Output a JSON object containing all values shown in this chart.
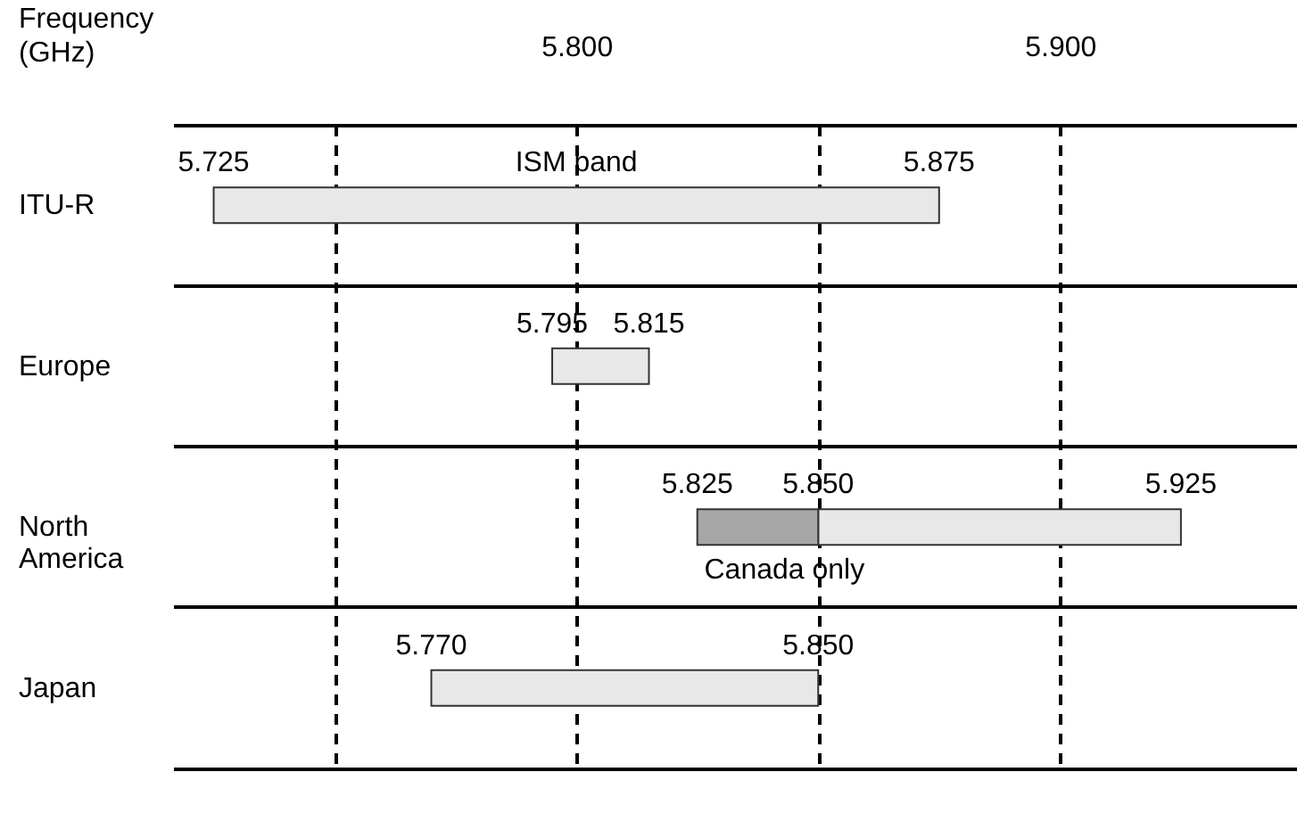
{
  "chart_data": {
    "type": "bar",
    "orientation": "horizontal",
    "xlabel": "Frequency (GHz)",
    "categories": [
      "ITU-R",
      "Europe",
      "North America",
      "Japan"
    ],
    "series": [
      {
        "color": "#e8e8e8",
        "base": [
          5.725,
          5.795,
          5.85,
          5.77
        ],
        "values": [
          0.15,
          0.02,
          0.075,
          0.08
        ]
      },
      {
        "name": "Canada only",
        "color": "#a6a6a6",
        "base": [
          null,
          null,
          5.825,
          null
        ],
        "values": [
          null,
          null,
          0.025,
          null
        ]
      }
    ],
    "xlim": [
      5.7166,
      5.949
    ],
    "xticks": [
      {
        "value": 5.75,
        "label": null
      },
      {
        "value": 5.8,
        "label": "5.800"
      },
      {
        "value": 5.85,
        "label": null
      },
      {
        "value": 5.9,
        "label": "5.900"
      }
    ],
    "grid": true,
    "annotations": [
      "ISM band",
      {
        "text": "5.725",
        "x": 5.725,
        "y": "ITU-R"
      },
      {
        "text": "5.875",
        "x": 5.875,
        "y": "ITU-R"
      },
      {
        "text": "5.795",
        "x": 5.795,
        "y": "Europe"
      },
      {
        "text": "5.815",
        "x": 5.815,
        "y": "Europe"
      },
      {
        "text": "5.825",
        "x": 5.825,
        "y": "North America"
      },
      {
        "text": "5.850",
        "x": 5.85,
        "y": "North America"
      },
      {
        "text": "5.925",
        "x": 5.925,
        "y": "North America"
      },
      {
        "text": "5.770",
        "x": 5.77,
        "y": "Japan"
      },
      {
        "text": "5.850",
        "x": 5.85,
        "y": "Japan"
      }
    ]
  }
}
